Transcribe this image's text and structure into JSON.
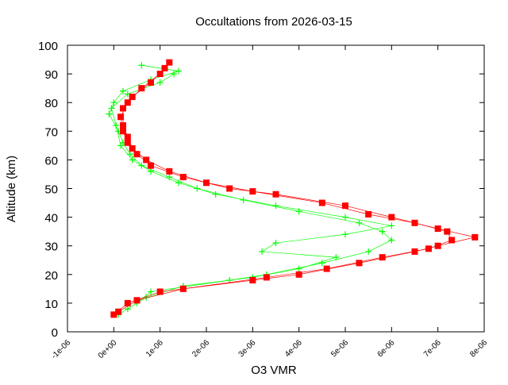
{
  "chart_data": {
    "type": "scatter",
    "title": "Occultations from 2026-03-15",
    "xlabel": "O3 VMR",
    "ylabel": "Altitude (km)",
    "xlim": [
      -1e-06,
      8e-06
    ],
    "ylim": [
      0,
      100
    ],
    "grid": false,
    "legend": "none",
    "x_tick_labels": [
      "-1e-06",
      "0e+00",
      "1e-06",
      "2e-06",
      "3e-06",
      "4e-06",
      "5e-06",
      "6e-06",
      "7e-06",
      "8e-06"
    ],
    "y_tick_labels": [
      "0",
      "10",
      "20",
      "30",
      "40",
      "50",
      "60",
      "70",
      "80",
      "90",
      "100"
    ],
    "series": [
      {
        "marker": "filled-square",
        "color": "#ff0000",
        "profiles": [
          {
            "altitude": [
              6,
              10,
              14,
              18,
              20,
              24,
              28,
              30,
              33,
              36,
              40,
              44,
              48,
              50,
              54,
              58,
              62,
              66,
              70,
              75,
              80,
              85,
              90,
              94
            ],
            "vmr": [
              0.0,
              3e-07,
              1e-06,
              3e-06,
              4e-06,
              5.3e-06,
              6.5e-06,
              7e-06,
              7.8e-06,
              7e-06,
              6e-06,
              5e-06,
              3.5e-06,
              2.5e-06,
              1.5e-06,
              8e-07,
              5e-07,
              3e-07,
              2e-07,
              1.5e-07,
              3e-07,
              6e-07,
              1e-06,
              1.2e-06
            ]
          },
          {
            "altitude": [
              7,
              11,
              15,
              19,
              22,
              26,
              29,
              32,
              35,
              38,
              41,
              45,
              49,
              52,
              56,
              60,
              64,
              68,
              72,
              78,
              82,
              87,
              92
            ],
            "vmr": [
              1e-07,
              5e-07,
              1.5e-06,
              3.3e-06,
              4.6e-06,
              5.8e-06,
              6.8e-06,
              7.3e-06,
              7.2e-06,
              6.5e-06,
              5.5e-06,
              4.5e-06,
              3e-06,
              2e-06,
              1.2e-06,
              7e-07,
              4e-07,
              3e-07,
              2e-07,
              2e-07,
              4e-07,
              8e-07,
              1.1e-06
            ]
          }
        ]
      },
      {
        "marker": "plus",
        "color": "#00ff00",
        "profiles": [
          {
            "altitude": [
              6,
              10,
              14,
              18,
              20,
              24,
              28,
              32,
              35,
              38,
              42,
              46,
              50,
              54,
              58,
              62,
              66,
              70,
              76,
              80,
              84,
              88,
              91,
              93
            ],
            "vmr": [
              1e-07,
              5e-07,
              8e-07,
              2.5e-06,
              3.3e-06,
              4.5e-06,
              5.5e-06,
              6e-06,
              5.8e-06,
              5.3e-06,
              4e-06,
              2.8e-06,
              1.8e-06,
              1.2e-06,
              6e-07,
              3.5e-07,
              2e-07,
              1e-07,
              -1e-07,
              0.0,
              2e-07,
              8e-07,
              1.4e-06,
              6e-07
            ]
          },
          {
            "altitude": [
              8,
              12,
              16,
              19,
              22,
              26,
              28,
              31,
              34,
              37,
              40,
              44,
              48,
              52,
              56,
              60,
              65,
              72,
              78,
              83,
              87,
              90
            ],
            "vmr": [
              3e-07,
              7e-07,
              1.5e-06,
              3e-06,
              4e-06,
              4.8e-06,
              3.2e-06,
              3.5e-06,
              5e-06,
              6e-06,
              5e-06,
              3.5e-06,
              2.2e-06,
              1.4e-06,
              8e-07,
              4e-07,
              1.5e-07,
              5e-08,
              -5e-08,
              3e-07,
              1e-06,
              1.3e-06
            ]
          }
        ]
      }
    ]
  }
}
